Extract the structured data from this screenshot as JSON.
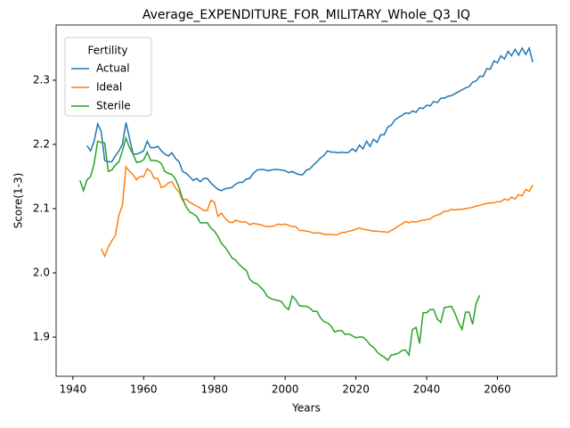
{
  "chart_data": {
    "type": "line",
    "title": "Average_EXPENDITURE_FOR_MILITARY_Whole_Q3_IQ",
    "xlabel": "Years",
    "ylabel": "Score(1-3)",
    "legend_title": "Fertility",
    "legend": "upper left",
    "grid": false,
    "xlim": [
      1935.25,
      2076.75
    ],
    "ylim": [
      1.839,
      2.386
    ],
    "xticks": [
      1940,
      1960,
      1980,
      2000,
      2020,
      2040,
      2060
    ],
    "yticks": [
      1.9,
      {
        "value": 2,
        "label": "2.0"
      },
      2.1,
      2.2,
      2.3
    ],
    "x": [
      1942,
      1943,
      1944,
      1945,
      1946,
      1947,
      1948,
      1949,
      1950,
      1951,
      1952,
      1953,
      1954,
      1955,
      1956,
      1957,
      1958,
      1959,
      1960,
      1961,
      1962,
      1963,
      1964,
      1965,
      1966,
      1967,
      1968,
      1969,
      1970,
      1971,
      1972,
      1973,
      1974,
      1975,
      1976,
      1977,
      1978,
      1979,
      1980,
      1981,
      1982,
      1983,
      1984,
      1985,
      1986,
      1987,
      1988,
      1989,
      1990,
      1991,
      1992,
      1993,
      1994,
      1995,
      1996,
      1997,
      1998,
      1999,
      2000,
      2001,
      2002,
      2003,
      2004,
      2005,
      2006,
      2007,
      2008,
      2009,
      2010,
      2011,
      2012,
      2013,
      2014,
      2015,
      2016,
      2017,
      2018,
      2019,
      2020,
      2021,
      2022,
      2023,
      2024,
      2025,
      2026,
      2027,
      2028,
      2029,
      2030,
      2031,
      2032,
      2033,
      2034,
      2035,
      2036,
      2037,
      2038,
      2039,
      2040,
      2041,
      2042,
      2043,
      2044,
      2045,
      2046,
      2047,
      2048,
      2049,
      2050,
      2051,
      2052,
      2053,
      2054,
      2055,
      2056,
      2057,
      2058,
      2059,
      2060,
      2061,
      2062,
      2063,
      2064,
      2065,
      2066,
      2067,
      2068,
      2069,
      2070
    ],
    "series": [
      {
        "name": "Actual",
        "color": "#1f77b4",
        "values": [
          null,
          null,
          2.198,
          2.19,
          2.205,
          2.232,
          2.22,
          2.175,
          2.173,
          2.173,
          2.182,
          2.19,
          2.2,
          2.234,
          2.21,
          2.185,
          2.185,
          2.187,
          2.19,
          2.205,
          2.195,
          2.195,
          2.197,
          2.19,
          2.185,
          2.182,
          2.187,
          2.178,
          2.173,
          2.158,
          2.155,
          2.15,
          2.144,
          2.147,
          2.142,
          2.147,
          2.147,
          2.14,
          2.135,
          2.13,
          2.128,
          2.131,
          2.132,
          2.133,
          2.138,
          2.141,
          2.141,
          2.146,
          2.147,
          2.155,
          2.16,
          2.161,
          2.161,
          2.159,
          2.16,
          2.161,
          2.161,
          2.16,
          2.159,
          2.156,
          2.158,
          2.155,
          2.153,
          2.153,
          2.16,
          2.162,
          2.168,
          2.173,
          2.179,
          2.183,
          2.19,
          2.188,
          2.188,
          2.187,
          2.188,
          2.187,
          2.188,
          2.193,
          2.189,
          2.199,
          2.193,
          2.205,
          2.197,
          2.208,
          2.203,
          2.215,
          2.215,
          2.227,
          2.23,
          2.238,
          2.242,
          2.245,
          2.249,
          2.248,
          2.252,
          2.25,
          2.257,
          2.256,
          2.261,
          2.26,
          2.267,
          2.265,
          2.272,
          2.272,
          2.275,
          2.276,
          2.279,
          2.282,
          2.285,
          2.288,
          2.29,
          2.297,
          2.299,
          2.306,
          2.306,
          2.318,
          2.317,
          2.33,
          2.327,
          2.338,
          2.333,
          2.345,
          2.338,
          2.348,
          2.339,
          2.35,
          2.34,
          2.35,
          2.328
        ]
      },
      {
        "name": "Ideal",
        "color": "#ff7f0e",
        "values": [
          null,
          null,
          null,
          null,
          null,
          null,
          2.038,
          2.026,
          2.04,
          2.05,
          2.058,
          2.09,
          2.105,
          2.165,
          2.158,
          2.153,
          2.145,
          2.15,
          2.15,
          2.162,
          2.158,
          2.147,
          2.147,
          2.133,
          2.135,
          2.14,
          2.142,
          2.132,
          2.126,
          2.113,
          2.115,
          2.11,
          2.107,
          2.104,
          2.101,
          2.097,
          2.097,
          2.113,
          2.11,
          2.088,
          2.093,
          2.085,
          2.08,
          2.078,
          2.082,
          2.08,
          2.079,
          2.079,
          2.075,
          2.077,
          2.076,
          2.075,
          2.073,
          2.072,
          2.072,
          2.073,
          2.076,
          2.075,
          2.076,
          2.074,
          2.072,
          2.072,
          2.066,
          2.066,
          2.065,
          2.064,
          2.062,
          2.062,
          2.062,
          2.06,
          2.06,
          2.06,
          2.059,
          2.06,
          2.063,
          2.063,
          2.065,
          2.066,
          2.068,
          2.07,
          2.068,
          2.067,
          2.066,
          2.065,
          2.065,
          2.064,
          2.064,
          2.063,
          2.066,
          2.069,
          2.073,
          2.076,
          2.08,
          2.078,
          2.08,
          2.079,
          2.081,
          2.082,
          2.083,
          2.084,
          2.088,
          2.09,
          2.092,
          2.096,
          2.096,
          2.099,
          2.098,
          2.099,
          2.099,
          2.1,
          2.101,
          2.102,
          2.104,
          2.105,
          2.107,
          2.108,
          2.109,
          2.109,
          2.111,
          2.111,
          2.115,
          2.113,
          2.118,
          2.115,
          2.122,
          2.12,
          2.13,
          2.127,
          2.137
        ]
      },
      {
        "name": "Sterile",
        "color": "#2ca02c",
        "values": [
          2.144,
          2.128,
          2.145,
          2.15,
          2.17,
          2.205,
          2.203,
          2.202,
          2.158,
          2.16,
          2.168,
          2.173,
          2.19,
          2.21,
          2.195,
          2.185,
          2.172,
          2.173,
          2.176,
          2.188,
          2.175,
          2.175,
          2.174,
          2.17,
          2.158,
          2.155,
          2.153,
          2.146,
          2.133,
          2.115,
          2.103,
          2.095,
          2.092,
          2.088,
          2.078,
          2.078,
          2.078,
          2.07,
          2.065,
          2.057,
          2.046,
          2.04,
          2.032,
          2.023,
          2.02,
          2.013,
          2.008,
          2.004,
          1.99,
          1.985,
          1.983,
          1.978,
          1.972,
          1.963,
          1.96,
          1.958,
          1.957,
          1.955,
          1.947,
          1.943,
          1.964,
          1.958,
          1.949,
          1.948,
          1.948,
          1.945,
          1.94,
          1.94,
          1.93,
          1.924,
          1.922,
          1.917,
          1.908,
          1.91,
          1.91,
          1.904,
          1.905,
          1.902,
          1.899,
          1.9,
          1.9,
          1.895,
          1.888,
          1.884,
          1.877,
          1.872,
          1.869,
          1.864,
          1.872,
          1.873,
          1.875,
          1.879,
          1.88,
          1.872,
          1.912,
          1.915,
          1.89,
          1.938,
          1.938,
          1.943,
          1.943,
          1.928,
          1.923,
          1.946,
          1.947,
          1.948,
          1.937,
          1.923,
          1.912,
          1.939,
          1.939,
          1.92,
          1.953,
          1.965,
          null,
          null,
          null,
          null,
          null,
          null,
          null,
          null,
          null,
          null,
          null,
          null,
          null,
          null,
          null
        ]
      }
    ]
  }
}
